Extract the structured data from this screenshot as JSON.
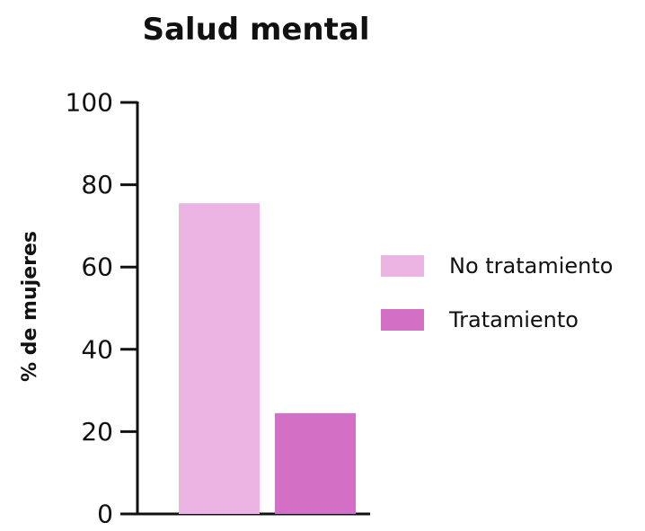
{
  "chart_data": {
    "type": "bar",
    "title": "Salud mental",
    "xlabel": "",
    "ylabel": "% de mujeres",
    "ylim": [
      0,
      100
    ],
    "yticks": [
      0,
      20,
      40,
      60,
      80,
      100
    ],
    "grid": false,
    "legend_position": "right",
    "series": [
      {
        "name": "No tratamiento",
        "value": 75.5,
        "color": "#EBB4E3"
      },
      {
        "name": "Tratamiento",
        "value": 24.5,
        "color": "#D46FC6"
      }
    ]
  }
}
